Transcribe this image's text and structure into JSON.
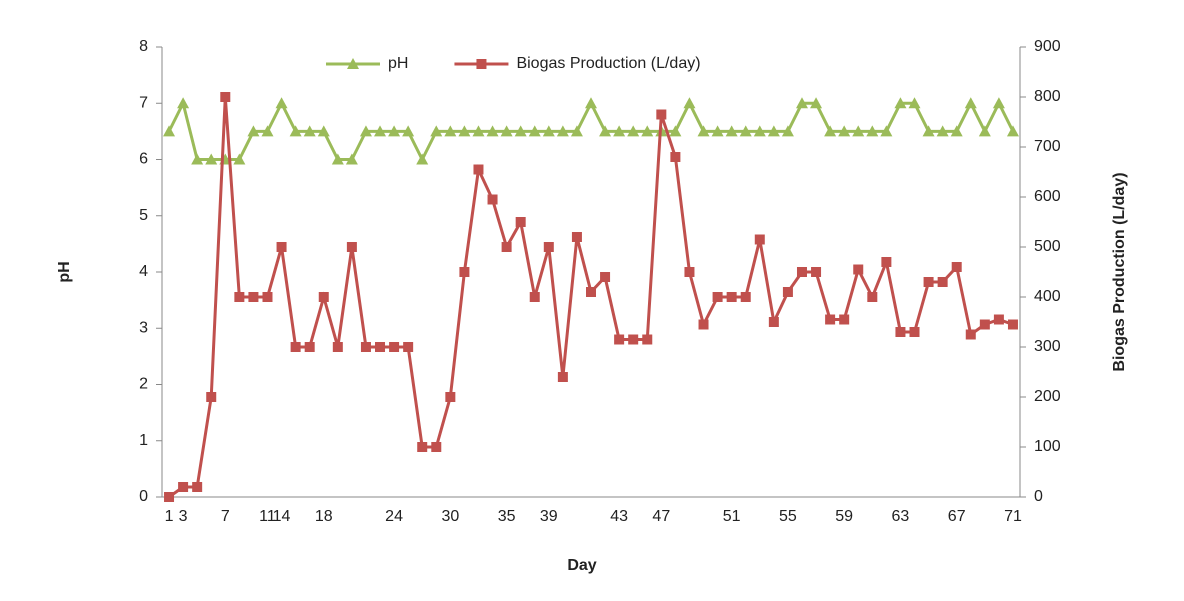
{
  "chart_data": {
    "type": "line",
    "x_label": "Day",
    "y_label": "pH",
    "y2_label": "Biogas Production (L/day)",
    "categories": [
      "1",
      "3",
      null,
      null,
      "7",
      null,
      null,
      "11",
      "14",
      null,
      null,
      "18",
      null,
      null,
      null,
      null,
      "24",
      null,
      null,
      null,
      "30",
      null,
      null,
      null,
      "35",
      null,
      null,
      "39",
      null,
      null,
      null,
      null,
      "43",
      null,
      null,
      "47",
      null,
      null,
      null,
      null,
      "51",
      null,
      null,
      null,
      "55",
      null,
      null,
      null,
      "59",
      null,
      null,
      null,
      "63",
      null,
      null,
      null,
      "67",
      null,
      null,
      null,
      "71"
    ],
    "series": [
      {
        "name": "pH",
        "color": "#9bbb59",
        "marker": "triangle",
        "axis": "y",
        "values": [
          6.5,
          7,
          6,
          6,
          6,
          6,
          6.5,
          6.5,
          7,
          6.5,
          6.5,
          6.5,
          6,
          6,
          6.5,
          6.5,
          6.5,
          6.5,
          6,
          6.5,
          6.5,
          6.5,
          6.5,
          6.5,
          6.5,
          6.5,
          6.5,
          6.5,
          6.5,
          6.5,
          7,
          6.5,
          6.5,
          6.5,
          6.5,
          6.5,
          6.5,
          7,
          6.5,
          6.5,
          6.5,
          6.5,
          6.5,
          6.5,
          6.5,
          7,
          7,
          6.5,
          6.5,
          6.5,
          6.5,
          6.5,
          7,
          7,
          6.5,
          6.5,
          6.5,
          7,
          6.5,
          7,
          6.5
        ]
      },
      {
        "name": "Biogas Production (L/day)",
        "color": "#c0504d",
        "marker": "square",
        "axis": "y2",
        "values": [
          0,
          20,
          20,
          200,
          800,
          400,
          400,
          400,
          500,
          300,
          300,
          400,
          300,
          500,
          300,
          300,
          300,
          300,
          100,
          100,
          200,
          450,
          655,
          595,
          500,
          550,
          400,
          500,
          240,
          520,
          410,
          440,
          315,
          315,
          315,
          765,
          680,
          450,
          345,
          400,
          400,
          400,
          515,
          350,
          410,
          450,
          450,
          355,
          355,
          455,
          400,
          470,
          330,
          330,
          430,
          430,
          460,
          325,
          345,
          355,
          345
        ]
      }
    ],
    "ylim": [
      0,
      8
    ],
    "yticks": [
      0,
      1,
      2,
      3,
      4,
      5,
      6,
      7,
      8
    ],
    "y2lim": [
      0,
      900
    ],
    "y2ticks": [
      0,
      100,
      200,
      300,
      400,
      500,
      600,
      700,
      800,
      900
    ],
    "legend": "top"
  }
}
